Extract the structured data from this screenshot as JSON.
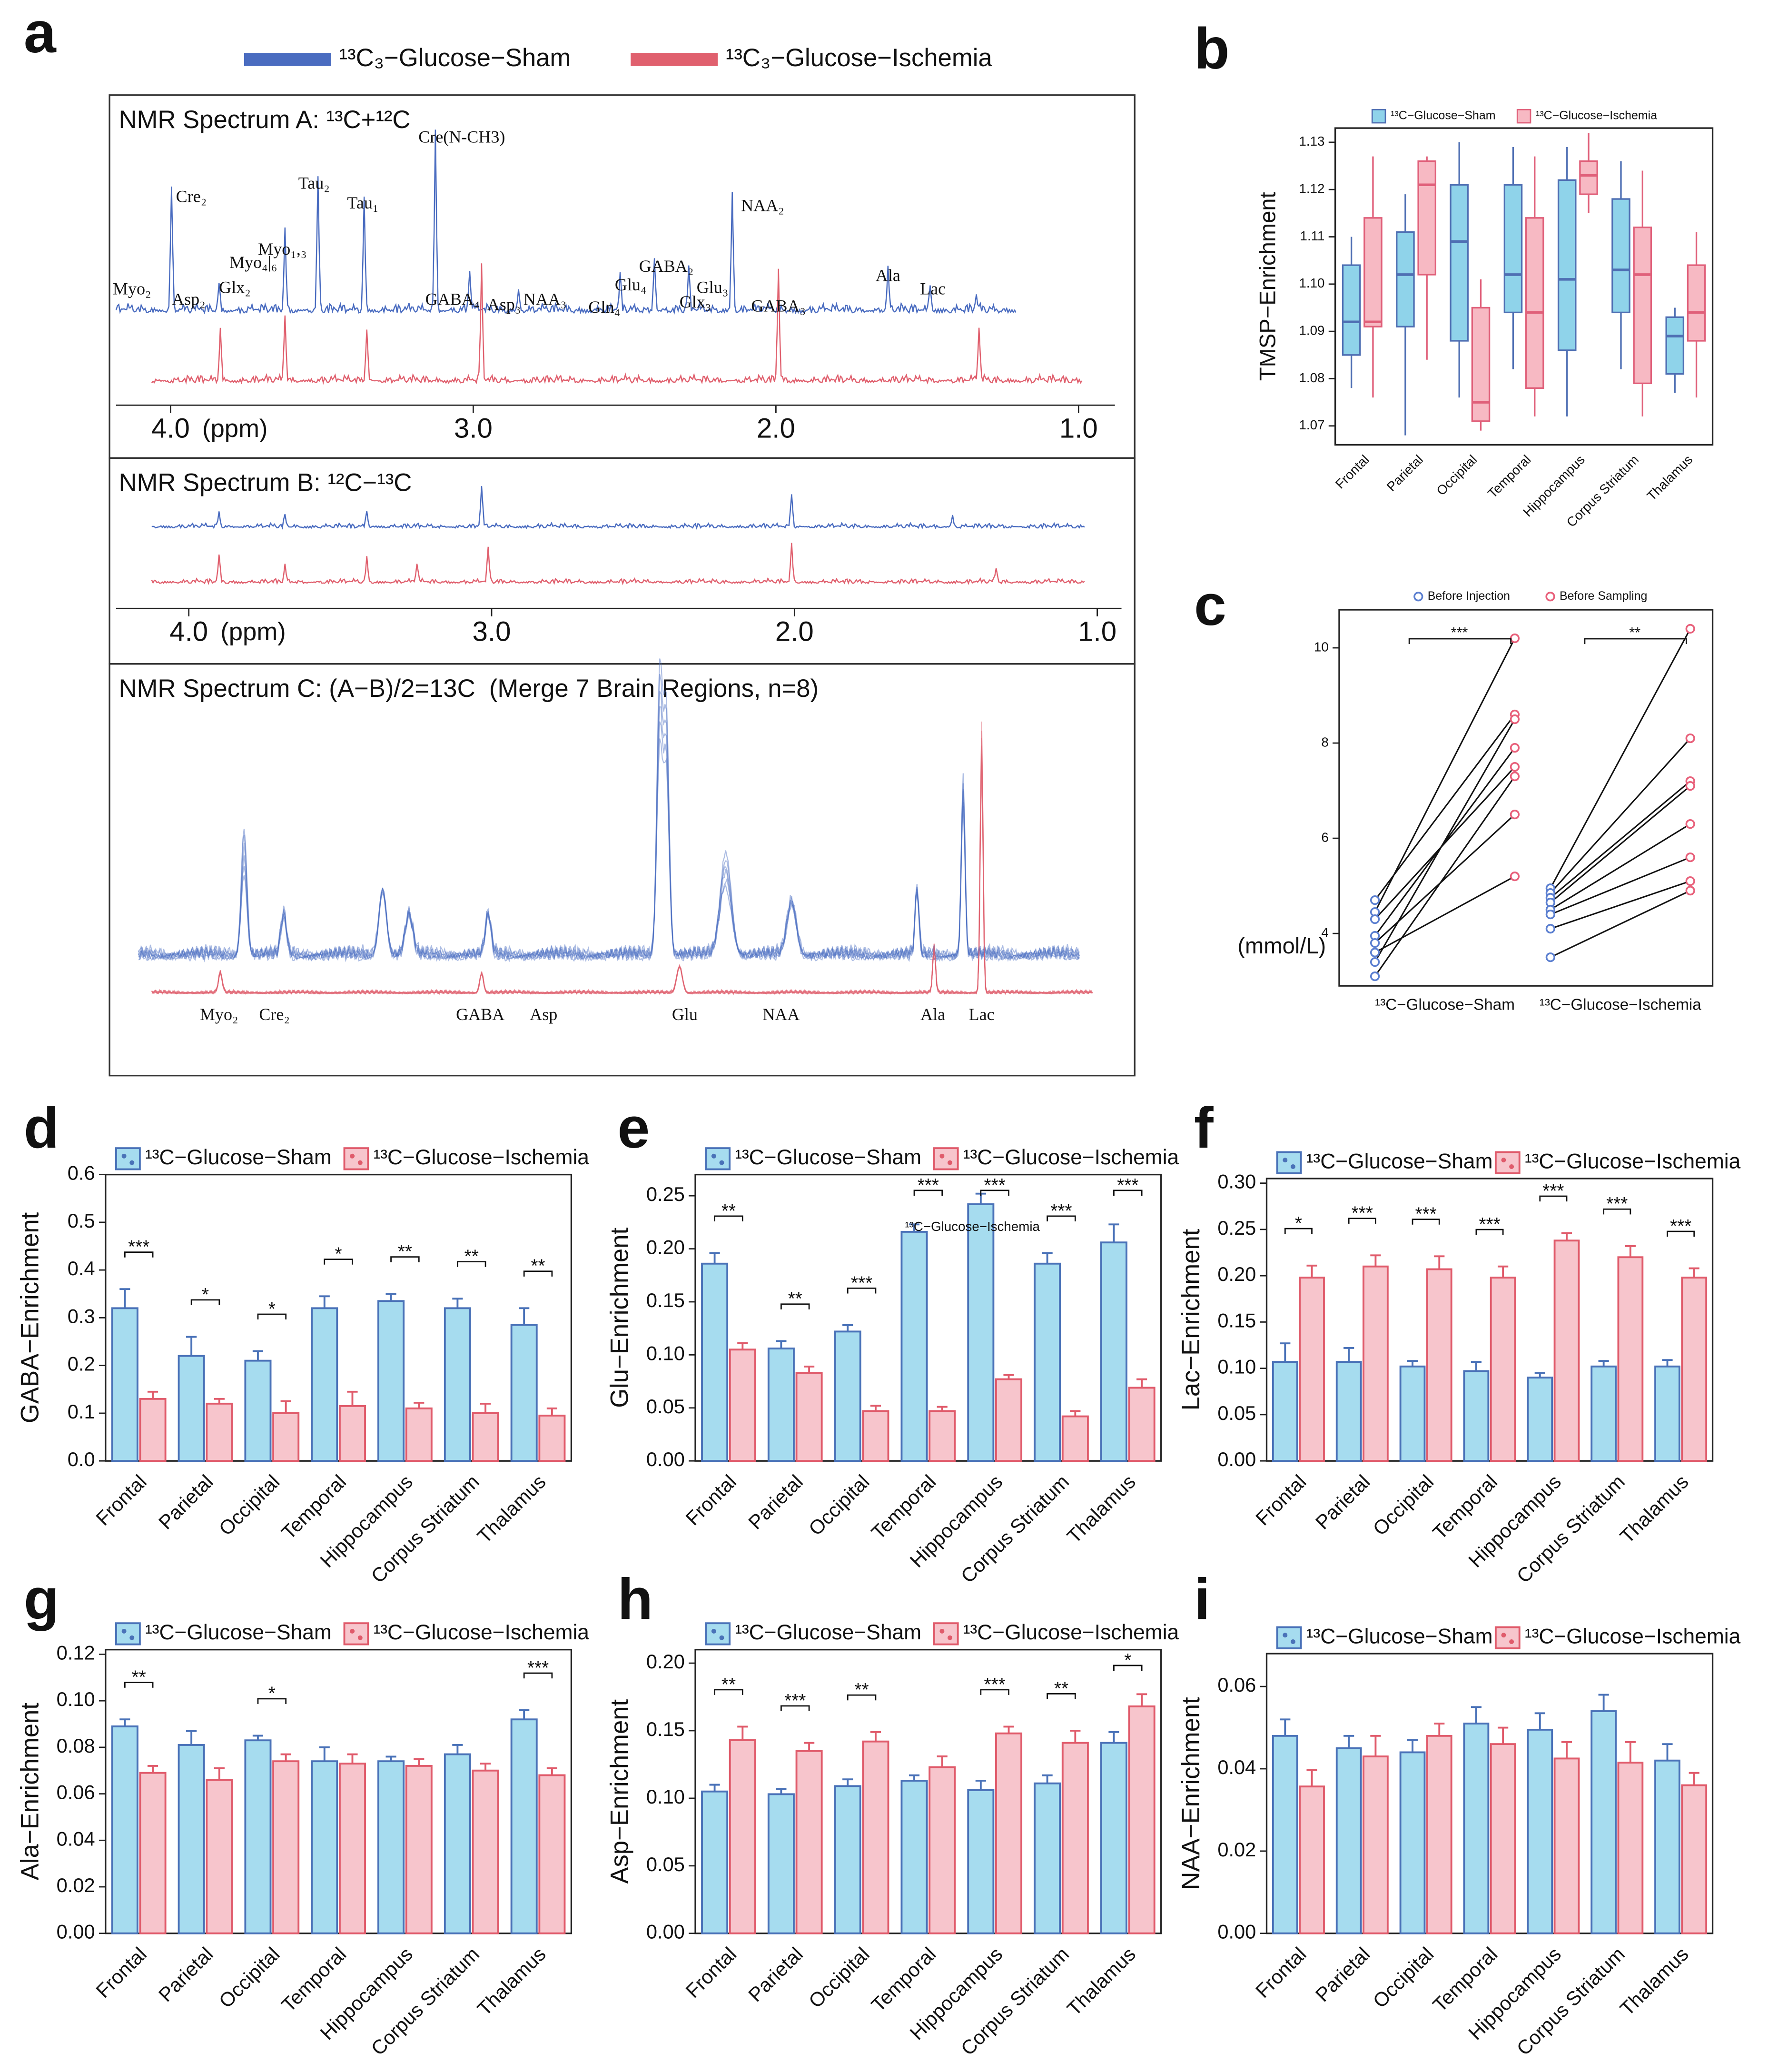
{
  "figure_a": {
    "panel": "a",
    "legend": [
      {
        "name": "¹³C₃−Glucose−Sham",
        "color": "#4a6cc0"
      },
      {
        "name": "¹³C₃−Glucose−Ischemia",
        "color": "#e0606e"
      }
    ],
    "spectrum_a": {
      "title": "NMR Spectrum A: ¹³C+¹²C",
      "peaks": [
        "Myo₂",
        "Asp₂",
        "Glx₂",
        "Myo₄|₆",
        "Myo₁,₃",
        "Cre₂",
        "Tau₂",
        "Tau₁",
        "Cre(N-CH3)",
        "GABA₄",
        "Asp₃",
        "NAA₃",
        "Gln₄",
        "Glu₄",
        "GABA₂",
        "Glu₃",
        "Glx₃",
        "GABA₃",
        "NAA₂",
        "Ala",
        "Lac"
      ],
      "xlim": [
        4.18,
        0.88
      ],
      "xticks": [
        {
          "value": 4,
          "label": "4.0"
        },
        {
          "value": 3,
          "label": "3.0"
        },
        {
          "value": 2,
          "label": "2.0"
        },
        {
          "value": 1,
          "label": "1.0"
        }
      ],
      "xlabel": "(ppm)"
    },
    "spectrum_b": {
      "title": "NMR Spectrum B: ¹²C−¹³C",
      "xlim": [
        4.24,
        0.92
      ],
      "xticks": [
        {
          "value": 4,
          "label": "4.0"
        },
        {
          "value": 3,
          "label": "3.0"
        },
        {
          "value": 2,
          "label": "2.0"
        },
        {
          "value": 1,
          "label": "1.0"
        }
      ],
      "xlabel": "(ppm)"
    },
    "spectrum_c": {
      "title": "NMR Spectrum C: (A−B)/2=13C  (Merge 7 Brain Regions, n=8)",
      "peaks": [
        "Myo₂",
        "Cre₂",
        "GABA",
        "Asp",
        "Glu",
        "NAA",
        "Ala",
        "Lac"
      ]
    }
  },
  "chart_data": [
    {
      "type": "box",
      "panel": "b",
      "ylabel": "TMSP−Enrichment",
      "categories": [
        "Frontal",
        "Parietal",
        "Occipital",
        "Temporal",
        "Hippocampus",
        "Corpus Striatum",
        "Thalamus"
      ],
      "series": [
        {
          "name": "¹³C−Glucose−Sham",
          "color": "#4f6fb3",
          "fill": "#8fd3ea",
          "low": [
            1.078,
            1.068,
            1.076,
            1.082,
            1.072,
            1.082,
            1.077
          ],
          "q1": [
            1.085,
            1.091,
            1.088,
            1.094,
            1.086,
            1.094,
            1.081
          ],
          "median": [
            1.092,
            1.102,
            1.109,
            1.102,
            1.101,
            1.103,
            1.089
          ],
          "q3": [
            1.104,
            1.111,
            1.121,
            1.121,
            1.122,
            1.118,
            1.093
          ],
          "high": [
            1.11,
            1.119,
            1.13,
            1.129,
            1.129,
            1.126,
            1.095
          ]
        },
        {
          "name": "¹³C−Glucose−Ischemia",
          "color": "#e0607a",
          "fill": "#f7b9c3",
          "low": [
            1.076,
            1.084,
            1.069,
            1.072,
            1.115,
            1.072,
            1.076
          ],
          "q1": [
            1.091,
            1.102,
            1.071,
            1.078,
            1.119,
            1.079,
            1.088
          ],
          "median": [
            1.092,
            1.121,
            1.075,
            1.094,
            1.123,
            1.102,
            1.094
          ],
          "q3": [
            1.114,
            1.126,
            1.095,
            1.114,
            1.126,
            1.112,
            1.104
          ],
          "high": [
            1.127,
            1.127,
            1.101,
            1.127,
            1.132,
            1.124,
            1.111
          ]
        }
      ],
      "ylim": [
        1.066,
        1.133
      ],
      "yticks": [
        1.07,
        1.08,
        1.09,
        {
          "value": 1.1,
          "label": "1.10"
        },
        1.11,
        1.12,
        1.13
      ]
    },
    {
      "type": "paired",
      "panel": "c",
      "ylabel": "(mmol/L)",
      "categories": [
        "¹³C−Glucose−Sham",
        "¹³C−Glucose−Ischemia"
      ],
      "series": [
        {
          "name": "Before Injection",
          "color": "#5b7fd0",
          "values": [
            [
              4.7,
              4.45,
              4.3,
              3.95,
              3.8,
              3.6,
              3.4,
              3.1
            ],
            [
              4.95,
              4.85,
              4.75,
              4.65,
              4.5,
              4.4,
              4.1,
              3.5
            ]
          ]
        },
        {
          "name": "Before Sampling",
          "color": "#e8607a",
          "values": [
            [
              8.6,
              10.2,
              7.5,
              7.9,
              6.5,
              5.2,
              8.5,
              7.3
            ],
            [
              10.4,
              8.1,
              7.2,
              7.1,
              6.3,
              5.6,
              5.1,
              4.9
            ]
          ]
        }
      ],
      "significance": [
        "***",
        "**"
      ],
      "ylim": [
        2.9,
        10.8
      ],
      "yticks": [
        4,
        6,
        8,
        10
      ]
    },
    {
      "type": "bar",
      "panel": "d",
      "ylabel": "GABA−Enrichment",
      "categories": [
        "Frontal",
        "Parietal",
        "Occipital",
        "Temporal",
        "Hippocampus",
        "Corpus Striatum",
        "Thalamus"
      ],
      "series": [
        {
          "name": "¹³C−Glucose−Sham",
          "color": "#4a72b8",
          "fill": "#a6dcef",
          "values": [
            0.32,
            0.22,
            0.21,
            0.32,
            0.335,
            0.32,
            0.285
          ],
          "errors": [
            0.04,
            0.04,
            0.02,
            0.025,
            0.015,
            0.02,
            0.035
          ]
        },
        {
          "name": "¹³C−Glucose−Ischemia",
          "color": "#e05b6b",
          "fill": "#f7c5cc",
          "values": [
            0.13,
            0.12,
            0.1,
            0.115,
            0.11,
            0.1,
            0.095
          ],
          "errors": [
            0.015,
            0.01,
            0.025,
            0.03,
            0.012,
            0.02,
            0.015
          ]
        }
      ],
      "significance": [
        "***",
        "*",
        "*",
        "*",
        "**",
        "**",
        "**"
      ],
      "ylim": [
        0,
        0.6
      ],
      "yticks": [
        {
          "value": 0,
          "label": "0.0"
        },
        0.1,
        0.2,
        0.3,
        0.4,
        0.5,
        0.6
      ]
    },
    {
      "type": "bar",
      "panel": "e",
      "ylabel": "Glu−Enrichment",
      "annotation": "¹³C−Glucose−Ischemia",
      "categories": [
        "Frontal",
        "Parietal",
        "Occipital",
        "Temporal",
        "Hippocampus",
        "Corpus Striatum",
        "Thalamus"
      ],
      "series": [
        {
          "name": "¹³C−Glucose−Sham",
          "color": "#4a72b8",
          "fill": "#a6dcef",
          "values": [
            0.186,
            0.106,
            0.122,
            0.216,
            0.242,
            0.186,
            0.206
          ],
          "errors": [
            0.01,
            0.007,
            0.006,
            0.007,
            0.01,
            0.01,
            0.017
          ]
        },
        {
          "name": "¹³C−Glucose−Ischemia",
          "color": "#e05b6b",
          "fill": "#f7c5cc",
          "values": [
            0.105,
            0.083,
            0.047,
            0.047,
            0.077,
            0.042,
            0.069
          ],
          "errors": [
            0.006,
            0.006,
            0.005,
            0.004,
            0.004,
            0.005,
            0.008
          ]
        }
      ],
      "significance": [
        "**",
        "**",
        "***",
        "***",
        "***",
        "***",
        "***"
      ],
      "ylim": [
        0,
        0.27
      ],
      "yticks": [
        {
          "value": 0,
          "label": "0.00"
        },
        0.05,
        {
          "value": 0.1,
          "label": "0.10"
        },
        0.15,
        {
          "value": 0.2,
          "label": "0.20"
        },
        0.25
      ]
    },
    {
      "type": "bar",
      "panel": "f",
      "ylabel": "Lac−Enrichment",
      "categories": [
        "Frontal",
        "Parietal",
        "Occipital",
        "Temporal",
        "Hippocampus",
        "Corpus Striatum",
        "Thalamus"
      ],
      "series": [
        {
          "name": "¹³C−Glucose−Sham",
          "color": "#4a72b8",
          "fill": "#a6dcef",
          "values": [
            0.107,
            0.107,
            0.102,
            0.097,
            0.09,
            0.102,
            0.102
          ],
          "errors": [
            0.02,
            0.015,
            0.006,
            0.01,
            0.005,
            0.006,
            0.007
          ]
        },
        {
          "name": "¹³C−Glucose−Ischemia",
          "color": "#e05b6b",
          "fill": "#f7c5cc",
          "values": [
            0.198,
            0.21,
            0.207,
            0.198,
            0.238,
            0.22,
            0.198
          ],
          "errors": [
            0.013,
            0.012,
            0.014,
            0.012,
            0.008,
            0.012,
            0.01
          ]
        }
      ],
      "significance": [
        "*",
        "***",
        "***",
        "***",
        "***",
        "***",
        "***"
      ],
      "ylim": [
        0,
        0.305
      ],
      "yticks": [
        {
          "value": 0,
          "label": "0.00"
        },
        0.05,
        {
          "value": 0.1,
          "label": "0.10"
        },
        0.15,
        {
          "value": 0.2,
          "label": "0.20"
        },
        0.25,
        {
          "value": 0.3,
          "label": "0.30"
        }
      ]
    },
    {
      "type": "bar",
      "panel": "g",
      "ylabel": "Ala−Enrichment",
      "categories": [
        "Frontal",
        "Parietal",
        "Occipital",
        "Temporal",
        "Hippocampus",
        "Corpus Striatum",
        "Thalamus"
      ],
      "series": [
        {
          "name": "¹³C−Glucose−Sham",
          "color": "#4a72b8",
          "fill": "#a6dcef",
          "values": [
            0.089,
            0.081,
            0.083,
            0.074,
            0.074,
            0.077,
            0.092
          ],
          "errors": [
            0.003,
            0.006,
            0.002,
            0.006,
            0.002,
            0.004,
            0.004
          ]
        },
        {
          "name": "¹³C−Glucose−Ischemia",
          "color": "#e05b6b",
          "fill": "#f7c5cc",
          "values": [
            0.069,
            0.066,
            0.074,
            0.073,
            0.072,
            0.07,
            0.068
          ],
          "errors": [
            0.003,
            0.005,
            0.003,
            0.004,
            0.003,
            0.003,
            0.003
          ]
        }
      ],
      "significance": [
        "**",
        null,
        "*",
        null,
        null,
        null,
        "***"
      ],
      "ylim": [
        0,
        0.122
      ],
      "yticks": [
        {
          "value": 0,
          "label": "0.00"
        },
        0.02,
        0.04,
        0.06,
        0.08,
        {
          "value": 0.1,
          "label": "0.10"
        },
        0.12
      ]
    },
    {
      "type": "bar",
      "panel": "h",
      "ylabel": "Asp−Enrichment",
      "categories": [
        "Frontal",
        "Parietal",
        "Occipital",
        "Temporal",
        "Hippocampus",
        "Corpus Striatum",
        "Thalamus"
      ],
      "series": [
        {
          "name": "¹³C−Glucose−Sham",
          "color": "#4a72b8",
          "fill": "#a6dcef",
          "values": [
            0.105,
            0.103,
            0.109,
            0.113,
            0.106,
            0.111,
            0.141
          ],
          "errors": [
            0.005,
            0.004,
            0.005,
            0.004,
            0.007,
            0.006,
            0.008
          ]
        },
        {
          "name": "¹³C−Glucose−Ischemia",
          "color": "#e05b6b",
          "fill": "#f7c5cc",
          "values": [
            0.143,
            0.135,
            0.142,
            0.123,
            0.148,
            0.141,
            0.168
          ],
          "errors": [
            0.01,
            0.006,
            0.007,
            0.008,
            0.005,
            0.009,
            0.009
          ]
        }
      ],
      "significance": [
        "**",
        "***",
        "**",
        null,
        "***",
        "**",
        "*"
      ],
      "ylim": [
        0,
        0.21
      ],
      "yticks": [
        {
          "value": 0,
          "label": "0.00"
        },
        0.05,
        {
          "value": 0.1,
          "label": "0.10"
        },
        0.15,
        {
          "value": 0.2,
          "label": "0.20"
        }
      ]
    },
    {
      "type": "bar",
      "panel": "i",
      "ylabel": "NAA−Enrichment",
      "categories": [
        "Frontal",
        "Parietal",
        "Occipital",
        "Temporal",
        "Hippocampus",
        "Corpus Striatum",
        "Thalamus"
      ],
      "series": [
        {
          "name": "¹³C−Glucose−Sham",
          "color": "#4a72b8",
          "fill": "#a6dcef",
          "values": [
            0.048,
            0.045,
            0.044,
            0.051,
            0.0495,
            0.054,
            0.042
          ],
          "errors": [
            0.004,
            0.003,
            0.003,
            0.004,
            0.004,
            0.004,
            0.004
          ]
        },
        {
          "name": "¹³C−Glucose−Ischemia",
          "color": "#e05b6b",
          "fill": "#f7c5cc",
          "values": [
            0.0357,
            0.043,
            0.048,
            0.046,
            0.0425,
            0.0415,
            0.036
          ],
          "errors": [
            0.004,
            0.005,
            0.003,
            0.004,
            0.004,
            0.005,
            0.003
          ]
        }
      ],
      "ylim": [
        0,
        0.068
      ],
      "yticks": [
        {
          "value": 0,
          "label": "0.00"
        },
        0.02,
        0.04,
        0.06
      ]
    }
  ]
}
